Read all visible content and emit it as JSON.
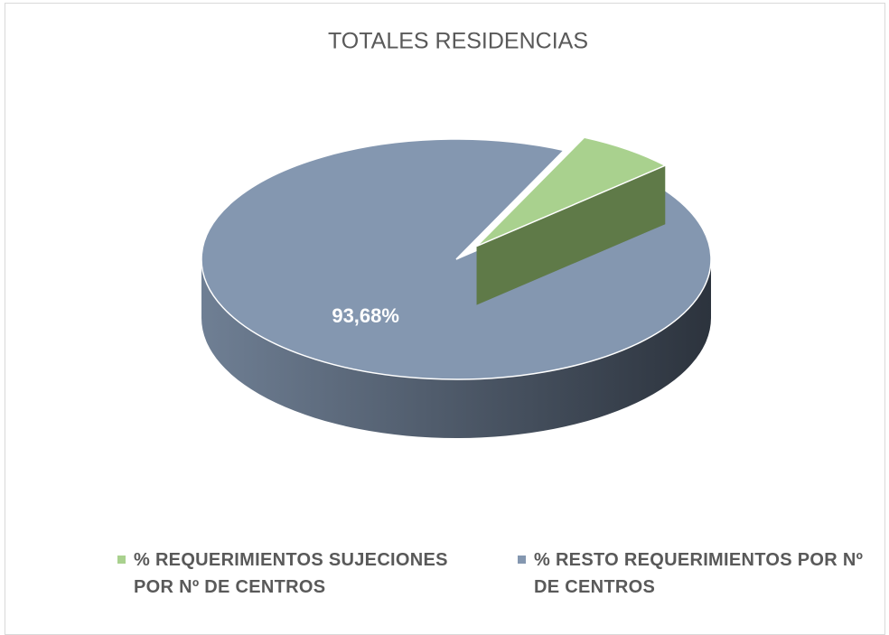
{
  "chart_data": {
    "type": "pie",
    "title": "TOTALES RESIDENCIAS",
    "categories": [
      "% REQUERIMIENTOS SUJECIONES POR Nº DE CENTROS",
      "% RESTO REQUERIMIENTOS POR Nº DE CENTROS"
    ],
    "values": [
      6.32,
      93.68
    ],
    "value_labels": [
      null,
      "93,68%"
    ],
    "colors": [
      "#a9d18e",
      "#8497b0"
    ],
    "legend": "bottom"
  }
}
